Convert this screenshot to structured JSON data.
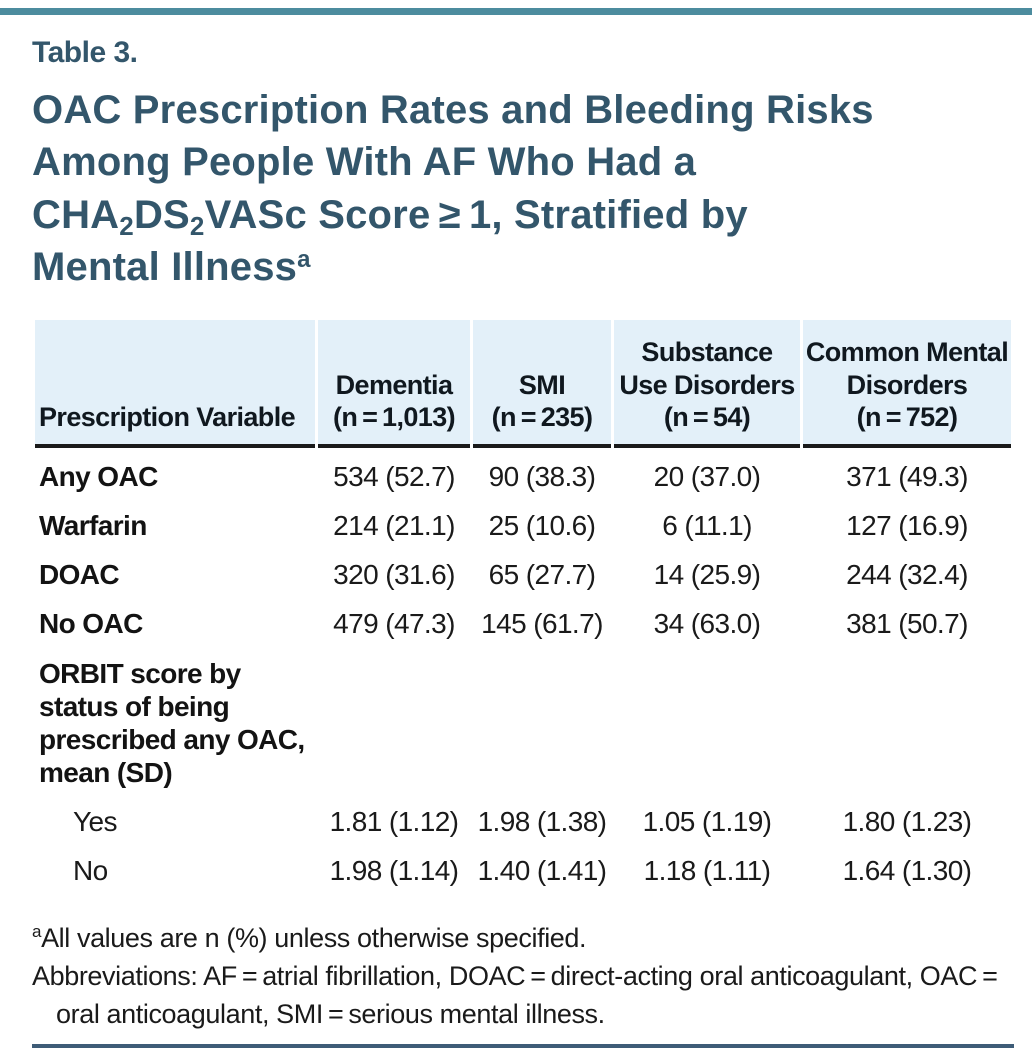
{
  "page": {
    "table_label": "Table 3."
  },
  "title": {
    "seg1": "OAC Prescription Rates and Bleeding Risks Among People With AF Who Had a CHA",
    "sub1": "2",
    "seg2": "DS",
    "sub2": "2",
    "seg3": "VASc Score ≥ 1, Stratified by Mental Illness",
    "sup": "a"
  },
  "table": {
    "headers": [
      {
        "l1": "Prescription Variable"
      },
      {
        "l1": "Dementia",
        "l2": "(n = 1,013)"
      },
      {
        "l1": "SMI",
        "l2": "(n = 235)"
      },
      {
        "l1": "Substance",
        "l2": "Use Disorders",
        "l3": "(n = 54)"
      },
      {
        "l1": "Common Mental",
        "l2": "Disorders",
        "l3": "(n = 752)"
      }
    ],
    "rows": [
      {
        "label": "Any OAC",
        "values": [
          "534 (52.7)",
          "90 (38.3)",
          "20 (37.0)",
          "371 (49.3)"
        ]
      },
      {
        "label": "Warfarin",
        "values": [
          "214 (21.1)",
          "25 (10.6)",
          "6 (11.1)",
          "127 (16.9)"
        ]
      },
      {
        "label": "DOAC",
        "values": [
          "320 (31.6)",
          "65 (27.7)",
          "14 (25.9)",
          "244 (32.4)"
        ]
      },
      {
        "label": "No OAC",
        "values": [
          "479 (47.3)",
          "145 (61.7)",
          "34 (63.0)",
          "381 (50.7)"
        ]
      },
      {
        "label": "ORBIT score by status of being prescribed any OAC, mean (SD)",
        "values": [
          "",
          "",
          "",
          ""
        ]
      },
      {
        "label": "Yes",
        "values": [
          "1.81 (1.12)",
          "1.98 (1.38)",
          "1.05 (1.19)",
          "1.80 (1.23)"
        ]
      },
      {
        "label": "No",
        "values": [
          "1.98 (1.14)",
          "1.40 (1.41)",
          "1.18 (1.11)",
          "1.64 (1.30)"
        ]
      }
    ]
  },
  "footnotes": {
    "note_marker": "a",
    "note_text": "All values are n (%) unless otherwise specified.",
    "abbreviations": "Abbreviations: AF = atrial fibrillation, DOAC = direct-acting oral anticoagulant, OAC = oral anticoagulant, SMI = serious mental illness."
  },
  "colors": {
    "accent_teal": "#4c8c9e",
    "title_slate": "#33566b",
    "header_bg": "#e3f0f9",
    "header_rule": "#1a1a1a",
    "bottom_rule": "#3e5c77"
  }
}
